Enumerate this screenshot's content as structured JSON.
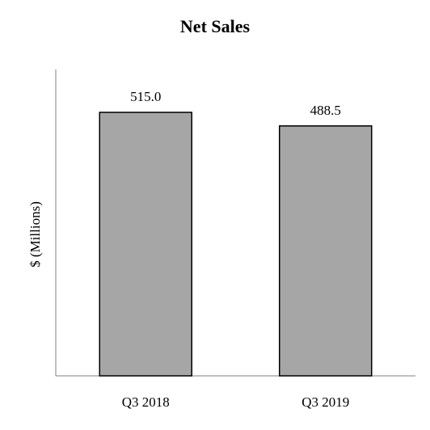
{
  "chart_data": {
    "type": "bar",
    "title": "Net Sales",
    "ylabel": "$ (Millions)",
    "xlabel": "",
    "categories": [
      "Q3 2018",
      "Q3 2019"
    ],
    "values": [
      515.0,
      488.5
    ],
    "data_labels": [
      "515.0",
      "488.5"
    ],
    "ylim": [
      0,
      600
    ],
    "grid": false,
    "legend": "none",
    "colors": {
      "bar_fill": "#a6a6a6",
      "bar_stroke": "#000000",
      "axis": "#808080"
    }
  }
}
